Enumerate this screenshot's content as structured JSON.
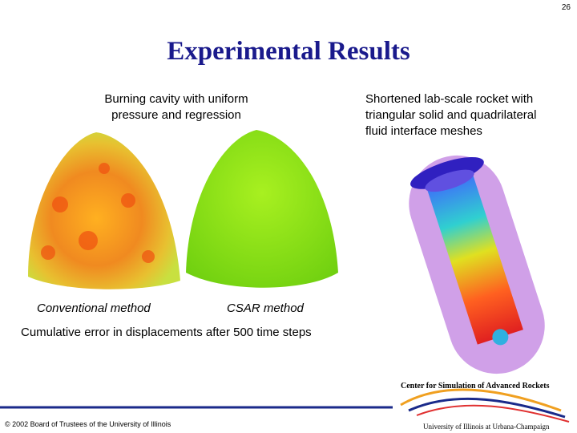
{
  "slide": {
    "page_number": "26",
    "title": "Experimental Results",
    "left_caption": [
      "Burning cavity with uniform",
      "pressure and regression"
    ],
    "right_caption": [
      "Shortened lab-scale rocket with",
      "triangular solid and quadrilateral",
      "fluid interface meshes"
    ],
    "image_labels": [
      "Conventional method",
      "CSAR method"
    ],
    "bottom_caption": "Cumulative error in displacements after 500 time steps",
    "copyright": "© 2002 Board of Trustees of the University of Illinois",
    "logo": {
      "center": "Center for Simulation of Advanced Rockets",
      "university": "University of Illinois at Urbana-Champaign"
    }
  }
}
